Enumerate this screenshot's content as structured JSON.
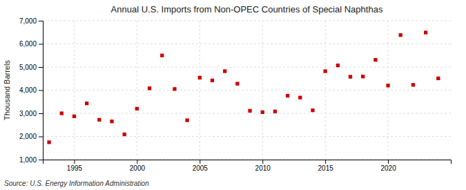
{
  "chart_data": {
    "type": "scatter",
    "title": "Annual U.S. Imports from Non-OPEC Countries of Special Naphthas",
    "ylabel": "Thousand Barrels",
    "annotations": [
      "Source: U.S. Energy Information Administration"
    ],
    "x": [
      1993,
      1994,
      1995,
      1996,
      1997,
      1998,
      1999,
      2000,
      2001,
      2002,
      2003,
      2004,
      2005,
      2006,
      2007,
      2008,
      2009,
      2010,
      2011,
      2012,
      2013,
      2014,
      2015,
      2016,
      2017,
      2018,
      2019,
      2020,
      2021,
      2022,
      2023,
      2024
    ],
    "values": [
      1750,
      3000,
      2870,
      3430,
      2720,
      2650,
      2090,
      3200,
      4080,
      5500,
      4050,
      2700,
      4540,
      4420,
      4820,
      4280,
      3110,
      3050,
      3080,
      3760,
      3680,
      3130,
      4820,
      5070,
      4580,
      4590,
      5310,
      4200,
      6380,
      4230,
      6490,
      4510
    ],
    "color": "#cc0000",
    "marker": "square",
    "grid": true,
    "xlim": [
      1992.5,
      2025
    ],
    "xticks": [
      1995,
      2000,
      2005,
      2010,
      2015,
      2020
    ],
    "ylim": [
      1000,
      7000
    ],
    "yticks": [
      {
        "value": 1000,
        "label": "1,000"
      },
      {
        "value": 2000,
        "label": "2,000"
      },
      {
        "value": 3000,
        "label": "3,000"
      },
      {
        "value": 4000,
        "label": "4,000"
      },
      {
        "value": 5000,
        "label": "5,000"
      },
      {
        "value": 6000,
        "label": "6,000"
      },
      {
        "value": 7000,
        "label": "7,000"
      }
    ]
  }
}
